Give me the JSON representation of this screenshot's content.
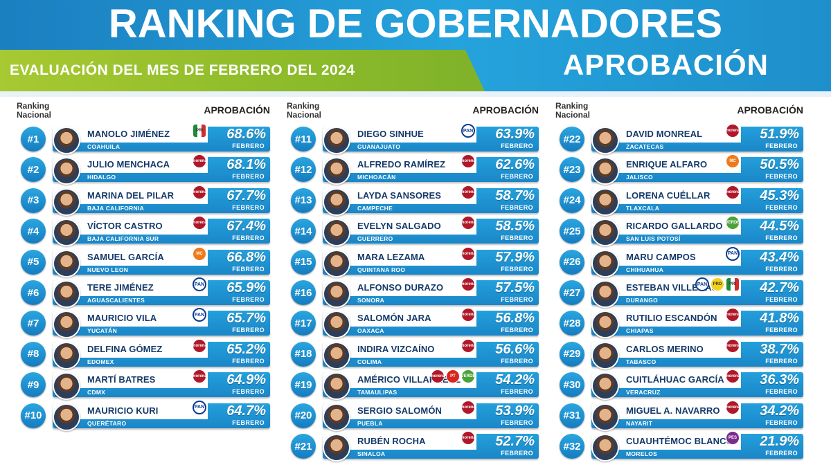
{
  "header": {
    "title": "RANKING DE GOBERNADORES",
    "subtitle": "EVALUACIÓN DEL MES DE FEBRERO DEL 2024",
    "subtitle_right": "APROBACIÓN"
  },
  "column_headers": {
    "rank_line1": "Ranking",
    "rank_line2": "Nacional",
    "approval": "APROBACIÓN"
  },
  "month_label": "FEBRERO",
  "party_colors": {
    "morena": "#b01829",
    "pan": "#0b3c91",
    "pri": "#1f8a3a",
    "mc": "#f07a1b",
    "pvem": "#4ca23a",
    "pt": "#d7261e",
    "pes": "#7a2c8f"
  },
  "columns": [
    [
      {
        "rank": "#1",
        "name": "MANOLO JIMÉNEZ",
        "state": "COAHUILA",
        "pct": "68.6%",
        "party": [
          "pri"
        ]
      },
      {
        "rank": "#2",
        "name": "JULIO MENCHACA",
        "state": "HIDALGO",
        "pct": "68.1%",
        "party": [
          "morena"
        ]
      },
      {
        "rank": "#3",
        "name": "MARINA DEL PILAR",
        "state": "BAJA CALIFORNIA",
        "pct": "67.7%",
        "party": [
          "morena"
        ]
      },
      {
        "rank": "#4",
        "name": "VÍCTOR CASTRO",
        "state": "BAJA CALIFORNIA SUR",
        "pct": "67.4%",
        "party": [
          "morena"
        ]
      },
      {
        "rank": "#5",
        "name": "SAMUEL GARCÍA",
        "state": "NUEVO LEON",
        "pct": "66.8%",
        "party": [
          "mc"
        ]
      },
      {
        "rank": "#6",
        "name": "TERE JIMÉNEZ",
        "state": "AGUASCALIENTES",
        "pct": "65.9%",
        "party": [
          "pan"
        ]
      },
      {
        "rank": "#7",
        "name": "MAURICIO VILA",
        "state": "YUCATÁN",
        "pct": "65.7%",
        "party": [
          "pan"
        ]
      },
      {
        "rank": "#8",
        "name": "DELFINA GÓMEZ",
        "state": "EDOMEX",
        "pct": "65.2%",
        "party": [
          "morena"
        ]
      },
      {
        "rank": "#9",
        "name": "MARTÍ BATRES",
        "state": "CDMX",
        "pct": "64.9%",
        "party": [
          "morena"
        ]
      },
      {
        "rank": "#10",
        "name": "MAURICIO KURI",
        "state": "QUERÉTARO",
        "pct": "64.7%",
        "party": [
          "pan"
        ]
      }
    ],
    [
      {
        "rank": "#11",
        "name": "DIEGO SINHUE",
        "state": "GUANAJUATO",
        "pct": "63.9%",
        "party": [
          "pan"
        ]
      },
      {
        "rank": "#12",
        "name": "ALFREDO RAMÍREZ",
        "state": "MICHOACÁN",
        "pct": "62.6%",
        "party": [
          "morena"
        ]
      },
      {
        "rank": "#13",
        "name": "LAYDA SANSORES",
        "state": "CAMPECHE",
        "pct": "58.7%",
        "party": [
          "morena"
        ]
      },
      {
        "rank": "#14",
        "name": "EVELYN SALGADO",
        "state": "GUERRERO",
        "pct": "58.5%",
        "party": [
          "morena"
        ]
      },
      {
        "rank": "#15",
        "name": "MARA LEZAMA",
        "state": "QUINTANA ROO",
        "pct": "57.9%",
        "party": [
          "morena"
        ]
      },
      {
        "rank": "#16",
        "name": "ALFONSO DURAZO",
        "state": "SONORA",
        "pct": "57.5%",
        "party": [
          "morena"
        ]
      },
      {
        "rank": "#17",
        "name": "SALOMÓN JARA",
        "state": "OAXACA",
        "pct": "56.8%",
        "party": [
          "morena"
        ]
      },
      {
        "rank": "#18",
        "name": "INDIRA VIZCAÍNO",
        "state": "COLIMA",
        "pct": "56.6%",
        "party": [
          "morena"
        ]
      },
      {
        "rank": "#19",
        "name": "AMÉRICO VILLARREAL",
        "state": "TAMAULIPAS",
        "pct": "54.2%",
        "party": [
          "morena",
          "pt",
          "pvem"
        ]
      },
      {
        "rank": "#20",
        "name": "SERGIO SALOMÓN",
        "state": "PUEBLA",
        "pct": "53.9%",
        "party": [
          "morena"
        ]
      },
      {
        "rank": "#21",
        "name": "RUBÉN ROCHA",
        "state": "SINALOA",
        "pct": "52.7%",
        "party": [
          "morena"
        ]
      }
    ],
    [
      {
        "rank": "#22",
        "name": "DAVID MONREAL",
        "state": "ZACATECAS",
        "pct": "51.9%",
        "party": [
          "morena"
        ]
      },
      {
        "rank": "#23",
        "name": "ENRIQUE ALFARO",
        "state": "JALISCO",
        "pct": "50.5%",
        "party": [
          "mc"
        ]
      },
      {
        "rank": "#24",
        "name": "LORENA CUÉLLAR",
        "state": "TLAXCALA",
        "pct": "45.3%",
        "party": [
          "morena"
        ]
      },
      {
        "rank": "#25",
        "name": "RICARDO GALLARDO",
        "state": "SAN LUIS POTOSÍ",
        "pct": "44.5%",
        "party": [
          "pvem"
        ]
      },
      {
        "rank": "#26",
        "name": "MARU CAMPOS",
        "state": "CHIHUAHUA",
        "pct": "43.4%",
        "party": [
          "pan"
        ]
      },
      {
        "rank": "#27",
        "name": "ESTEBAN VILLEGAS",
        "state": "DURANGO",
        "pct": "42.7%",
        "party": [
          "pan",
          "prd",
          "pri"
        ]
      },
      {
        "rank": "#28",
        "name": "RUTILIO ESCANDÓN",
        "state": "CHIAPAS",
        "pct": "41.8%",
        "party": [
          "morena"
        ]
      },
      {
        "rank": "#29",
        "name": "CARLOS MERINO",
        "state": "TABASCO",
        "pct": "38.7%",
        "party": [
          "morena"
        ]
      },
      {
        "rank": "#30",
        "name": "CUITLÁHUAC GARCÍA",
        "state": "VERACRUZ",
        "pct": "36.3%",
        "party": [
          "morena"
        ]
      },
      {
        "rank": "#31",
        "name": "MIGUEL A. NAVARRO",
        "state": "NAYARIT",
        "pct": "34.2%",
        "party": [
          "morena"
        ]
      },
      {
        "rank": "#32",
        "name": "CUAUHTÉMOC BLANCO",
        "state": "MORELOS",
        "pct": "21.9%",
        "party": [
          "pes"
        ]
      }
    ]
  ]
}
